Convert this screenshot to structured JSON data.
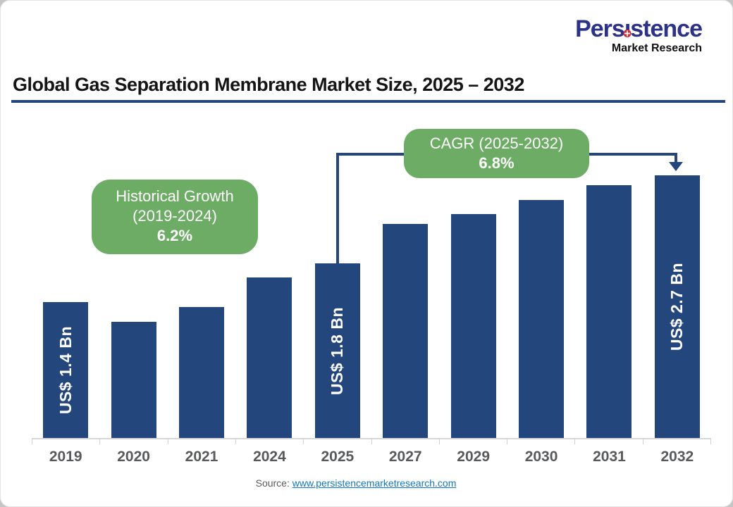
{
  "logo": {
    "part1": "Pers",
    "i_char": "ı",
    "part2": "stence",
    "subtitle": "Market Research",
    "word_color": "#2B3287",
    "dot_color": "#D22730"
  },
  "header": {
    "title": "Global Gas Separation Membrane Market Size, 2025 – 2032"
  },
  "annotations": {
    "historical": {
      "line1": "Historical Growth",
      "line2": "(2019-2024)",
      "value": "6.2%"
    },
    "cagr": {
      "line1": "CAGR (2025-2032)",
      "value": "6.8%"
    }
  },
  "chart_data": {
    "type": "bar",
    "title": "Global Gas Separation Membrane Market Size, 2025 – 2032",
    "unit": "US$ Bn",
    "categories": [
      "2019",
      "2020",
      "2021",
      "2024",
      "2025",
      "2027",
      "2029",
      "2030",
      "2031",
      "2032"
    ],
    "values": [
      1.4,
      1.2,
      1.35,
      1.65,
      1.8,
      2.2,
      2.3,
      2.45,
      2.6,
      2.7
    ],
    "value_is_estimated": [
      false,
      true,
      true,
      true,
      false,
      true,
      true,
      true,
      true,
      false
    ],
    "bar_labels": [
      "US$ 1.4 Bn",
      null,
      null,
      null,
      "US$ 1.8 Bn",
      null,
      null,
      null,
      null,
      "US$ 2.7 Bn"
    ],
    "ylim": [
      0,
      2.9
    ],
    "grid": false,
    "legend": false,
    "bar_color": "#23467C",
    "annotation_color": "#6CAC64",
    "axis_label_color": "#58595B",
    "axis_line_color": "#d8d8d8"
  },
  "source": {
    "prefix": "Source:",
    "link": "www.persistencemarketresearch.com"
  }
}
